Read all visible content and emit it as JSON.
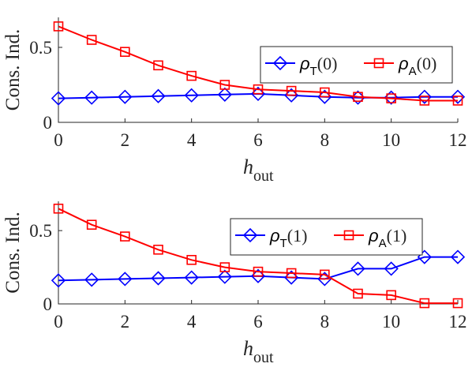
{
  "chart_data": [
    {
      "type": "line",
      "xlabel": "h",
      "xlabel_sub": "out",
      "ylabel": "Cons. Ind.",
      "xlim": [
        0,
        12
      ],
      "ylim": [
        0,
        0.7
      ],
      "xticks": [
        0,
        2,
        4,
        6,
        8,
        10,
        12
      ],
      "yticks": [
        0,
        0.5
      ],
      "ytick_labels": [
        "0",
        "0.5"
      ],
      "grid": false,
      "legend_position": "top-right",
      "x": [
        0,
        1,
        2,
        3,
        4,
        5,
        6,
        7,
        8,
        9,
        10,
        11,
        12
      ],
      "series": [
        {
          "name": "ρT(0)",
          "legend": {
            "symbol": "ρ",
            "sub": "T",
            "arg": "(0)"
          },
          "color": "#0000ff",
          "marker": "diamond",
          "values": [
            0.16,
            0.165,
            0.17,
            0.175,
            0.18,
            0.185,
            0.19,
            0.18,
            0.17,
            0.165,
            0.165,
            0.17,
            0.17
          ]
        },
        {
          "name": "ρA(0)",
          "legend": {
            "symbol": "ρ",
            "sub": "A",
            "arg": "(0)"
          },
          "color": "#ff0000",
          "marker": "square",
          "values": [
            0.64,
            0.55,
            0.47,
            0.38,
            0.31,
            0.25,
            0.22,
            0.21,
            0.2,
            0.17,
            0.16,
            0.145,
            0.145
          ]
        }
      ]
    },
    {
      "type": "line",
      "xlabel": "h",
      "xlabel_sub": "out",
      "ylabel": "Cons. Ind.",
      "xlim": [
        0,
        12
      ],
      "ylim": [
        0,
        0.7
      ],
      "xticks": [
        0,
        2,
        4,
        6,
        8,
        10,
        12
      ],
      "yticks": [
        0,
        0.5
      ],
      "ytick_labels": [
        "0",
        "0.5"
      ],
      "grid": false,
      "legend_position": "top-right",
      "x": [
        0,
        1,
        2,
        3,
        4,
        5,
        6,
        7,
        8,
        9,
        10,
        11,
        12
      ],
      "series": [
        {
          "name": "ρT(1)",
          "legend": {
            "symbol": "ρ",
            "sub": "T",
            "arg": "(1)"
          },
          "color": "#0000ff",
          "marker": "diamond",
          "values": [
            0.16,
            0.165,
            0.17,
            0.175,
            0.18,
            0.185,
            0.19,
            0.18,
            0.17,
            0.24,
            0.24,
            0.32,
            0.32
          ]
        },
        {
          "name": "ρA(1)",
          "legend": {
            "symbol": "ρ",
            "sub": "A",
            "arg": "(1)"
          },
          "color": "#ff0000",
          "marker": "square",
          "values": [
            0.65,
            0.54,
            0.46,
            0.37,
            0.3,
            0.25,
            0.22,
            0.21,
            0.2,
            0.07,
            0.06,
            0.005,
            0.005
          ]
        }
      ]
    }
  ]
}
